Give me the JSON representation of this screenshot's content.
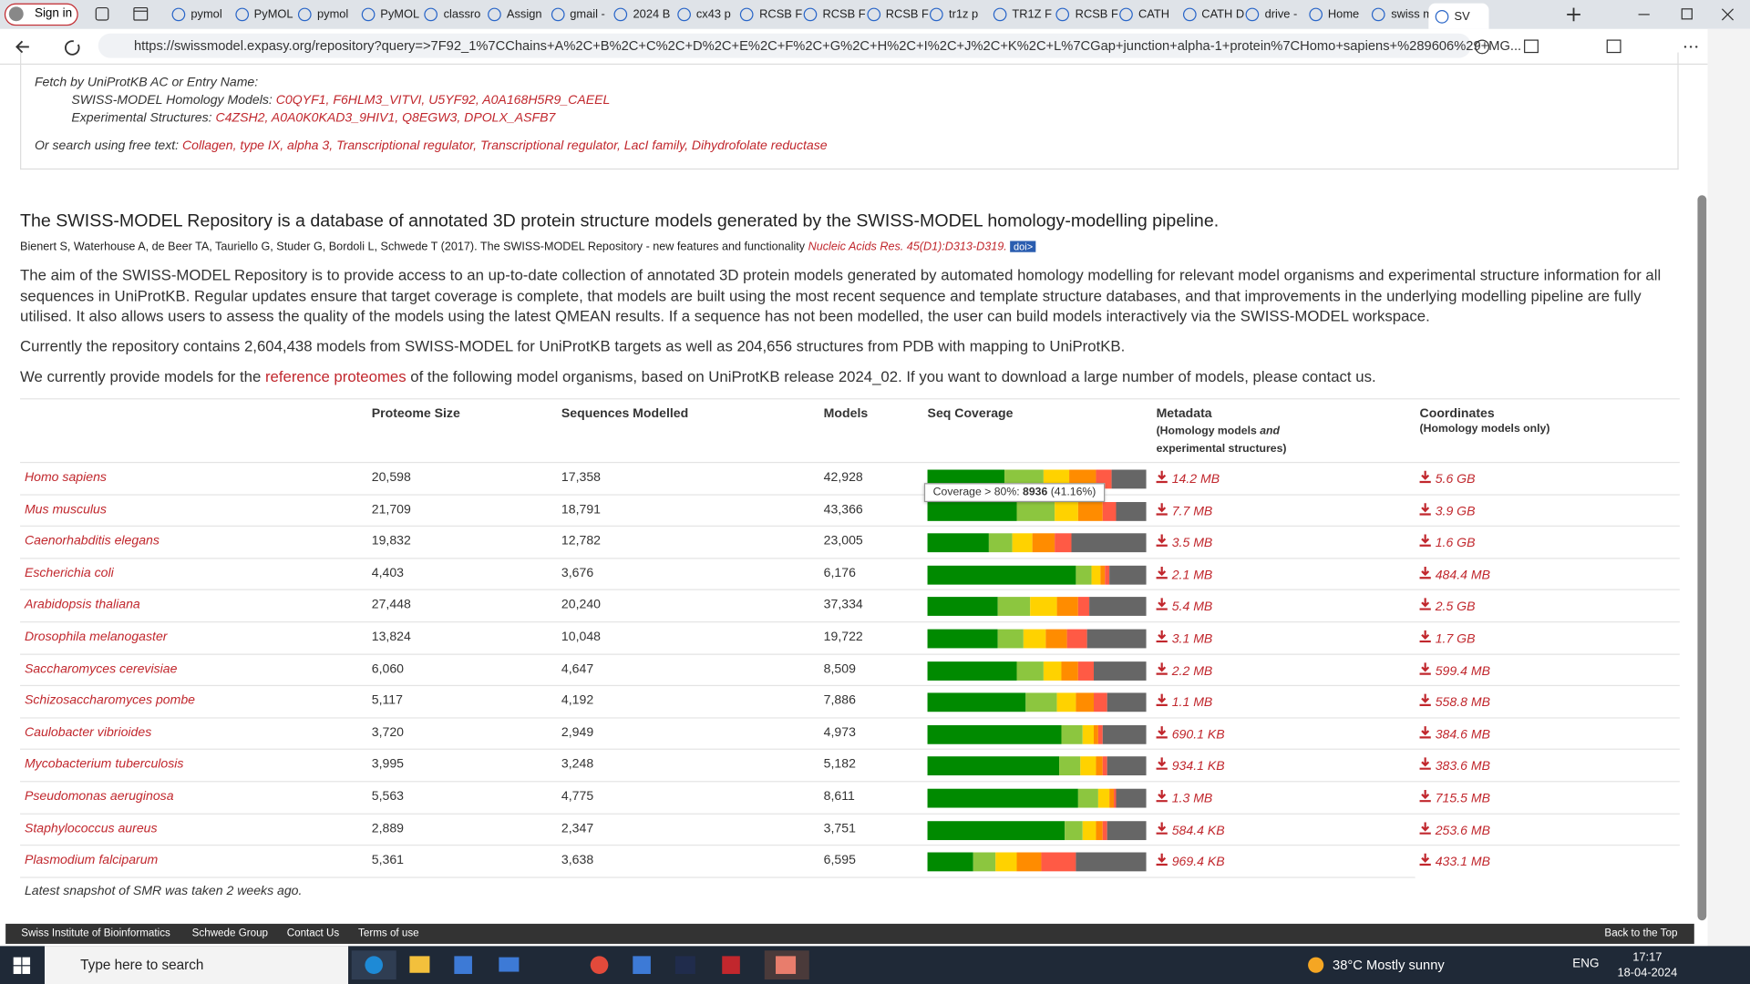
{
  "browser": {
    "profile": "Sign in",
    "tabs": [
      "pymol",
      "PyMOL",
      "pymol",
      "PyMOL",
      "classro",
      "Assign",
      "gmail -",
      "2024 B",
      "cx43 p",
      "RCSB F",
      "RCSB F",
      "RCSB F",
      "tr1z p",
      "TR1Z F",
      "RCSB F",
      "CATH",
      "CATH D",
      "drive -",
      "Home",
      "swiss m",
      "SV"
    ],
    "url": "https://swissmodel.expasy.org/repository?query=>7F92_1%7CChains+A%2C+B%2C+C%2C+D%2C+E%2C+F%2C+G%2C+H%2C+I%2C+J%2C+K%2C+L%7CGap+junction+alpha-1+protein%7CHomo+sapiens+%289606%29+MG..."
  },
  "search": {
    "fetch_label": "Fetch by UniProtKB AC or Entry Name:",
    "homology_label": "SWISS-MODEL Homology Models:",
    "homology_links": [
      "C0QYF1,",
      "F6HLM3_VITVI,",
      "U5YF92,",
      "A0A168H5R9_CAEEL"
    ],
    "experimental_label": "Experimental Structures:",
    "experimental_links": [
      "C4ZSH2,",
      "A0A0K0KAD3_9HIV1,",
      "Q8EGW3,",
      "DPOLX_ASFB7"
    ],
    "freetext_label": "Or search using free text:",
    "freetext_links": [
      "Collagen, type IX, alpha 3,",
      "Transcriptional regulator,",
      "Transcriptional regulator, LacI family,",
      "Dihydrofolate reductase"
    ]
  },
  "intro": {
    "heading": "The SWISS-MODEL Repository is a database of annotated 3D protein structure models generated by the SWISS-MODEL homology-modelling pipeline.",
    "citation": "Bienert S, Waterhouse A, de Beer TA, Tauriello G, Studer G, Bordoli L, Schwede T (2017). The SWISS-MODEL Repository - new features and functionality",
    "journal": "Nucleic Acids Res. 45(D1):D313-D319.",
    "doi": "doi>",
    "para1": "The aim of the SWISS-MODEL Repository is to provide access to an up-to-date collection of annotated 3D protein models generated by automated homology modelling for relevant model organisms and experimental structure information for all sequences in UniProtKB. Regular updates ensure that target coverage is complete, that models are built using the most recent sequence and template structure databases, and that improvements in the underlying modelling pipeline are fully utilised. It also allows users to assess the quality of the models using the latest QMEAN results. If a sequence has not been modelled, the user can build models interactively via the SWISS-MODEL workspace.",
    "para2": "Currently the repository contains 2,604,438 models from SWISS-MODEL for UniProtKB targets as well as 204,656 structures from PDB with mapping to UniProtKB.",
    "para3_start": "We currently provide models for the",
    "para3_link": "reference proteomes",
    "para3_end": "of the following model organisms, based on UniProtKB release 2024_02. If you want to download a large number of models, please contact us."
  },
  "table": {
    "headers": [
      "Proteome Size",
      "Sequences Modelled",
      "Models",
      "Seq Coverage",
      "Metadata",
      "Coordinates"
    ],
    "metadata_sub": [
      "(Homology models",
      "and",
      "experimental structures)"
    ],
    "coordinates_sub": "(Homology models only)",
    "coverage_colors": [
      "#008a00",
      "#8cc63f",
      "#ffd200",
      "#ff8c00",
      "#ff5a45",
      "#666666"
    ],
    "rows": [
      {
        "organism": "Homo sapiens",
        "proteome_size": "20,598",
        "sequences_modelled": "17,358",
        "models": "42,928",
        "coverage": [
          35,
          18,
          12,
          12,
          7,
          16
        ],
        "metadata": "14.2 MB",
        "coordinates": "5.6 GB"
      },
      {
        "organism": "Mus musculus",
        "proteome_size": "21,709",
        "sequences_modelled": "18,791",
        "models": "43,366",
        "coverage": [
          41,
          17,
          11,
          11,
          6,
          14
        ],
        "metadata": "7.7 MB",
        "coordinates": "3.9 GB"
      },
      {
        "organism": "Caenorhabditis elegans",
        "proteome_size": "19,832",
        "sequences_modelled": "12,782",
        "models": "23,005",
        "coverage": [
          28,
          11,
          9,
          10,
          8,
          34
        ],
        "metadata": "3.5 MB",
        "coordinates": "1.6 GB"
      },
      {
        "organism": "Escherichia coli",
        "proteome_size": "4,403",
        "sequences_modelled": "3,676",
        "models": "6,176",
        "coverage": [
          68,
          7,
          4,
          2,
          2,
          17
        ],
        "metadata": "2.1 MB",
        "coordinates": "484.4 MB"
      },
      {
        "organism": "Arabidopsis thaliana",
        "proteome_size": "27,448",
        "sequences_modelled": "20,240",
        "models": "37,334",
        "coverage": [
          32,
          15,
          12,
          10,
          5,
          26
        ],
        "metadata": "5.4 MB",
        "coordinates": "2.5 GB"
      },
      {
        "organism": "Drosophila melanogaster",
        "proteome_size": "13,824",
        "sequences_modelled": "10,048",
        "models": "19,722",
        "coverage": [
          32,
          12,
          10,
          10,
          9,
          27
        ],
        "metadata": "3.1 MB",
        "coordinates": "1.7 GB"
      },
      {
        "organism": "Saccharomyces cerevisiae",
        "proteome_size": "6,060",
        "sequences_modelled": "4,647",
        "models": "8,509",
        "coverage": [
          41,
          12,
          8,
          8,
          7,
          24
        ],
        "metadata": "2.2 MB",
        "coordinates": "599.4 MB"
      },
      {
        "organism": "Schizosaccharomyces pombe",
        "proteome_size": "5,117",
        "sequences_modelled": "4,192",
        "models": "7,886",
        "coverage": [
          45,
          14,
          9,
          8,
          6,
          18
        ],
        "metadata": "1.1 MB",
        "coordinates": "558.8 MB"
      },
      {
        "organism": "Caulobacter vibrioides",
        "proteome_size": "3,720",
        "sequences_modelled": "2,949",
        "models": "4,973",
        "coverage": [
          61,
          10,
          5,
          2,
          2,
          20
        ],
        "metadata": "690.1 KB",
        "coordinates": "384.6 MB"
      },
      {
        "organism": "Mycobacterium tuberculosis",
        "proteome_size": "3,995",
        "sequences_modelled": "3,248",
        "models": "5,182",
        "coverage": [
          60,
          10,
          7,
          3,
          2,
          18
        ],
        "metadata": "934.1 KB",
        "coordinates": "383.6 MB"
      },
      {
        "organism": "Pseudomonas aeruginosa",
        "proteome_size": "5,563",
        "sequences_modelled": "4,775",
        "models": "8,611",
        "coverage": [
          69,
          9,
          5,
          2,
          1,
          14
        ],
        "metadata": "1.3 MB",
        "coordinates": "715.5 MB"
      },
      {
        "organism": "Staphylococcus aureus",
        "proteome_size": "2,889",
        "sequences_modelled": "2,347",
        "models": "3,751",
        "coverage": [
          63,
          8,
          6,
          3,
          2,
          18
        ],
        "metadata": "584.4 KB",
        "coordinates": "253.6 MB"
      },
      {
        "organism": "Plasmodium falciparum",
        "proteome_size": "5,361",
        "sequences_modelled": "3,638",
        "models": "6,595",
        "coverage": [
          21,
          10,
          10,
          11,
          16,
          32
        ],
        "metadata": "969.4 KB",
        "coordinates": "433.1 MB"
      }
    ],
    "tooltip": {
      "label": "Coverage > 80%:",
      "count": "8936",
      "percent": "(41.16%)"
    },
    "footnote": "Latest snapshot of SMR was taken 2 weeks ago."
  },
  "footer": {
    "links": [
      "Swiss Institute of Bioinformatics",
      "Schwede Group",
      "Contact Us",
      "Terms of use"
    ],
    "top": "Back to the Top"
  },
  "taskbar": {
    "search": "Type here to search",
    "temperature": "38°C",
    "weather": "Mostly sunny",
    "language": "ENG",
    "time": "17:17",
    "date": "18-04-2024"
  }
}
